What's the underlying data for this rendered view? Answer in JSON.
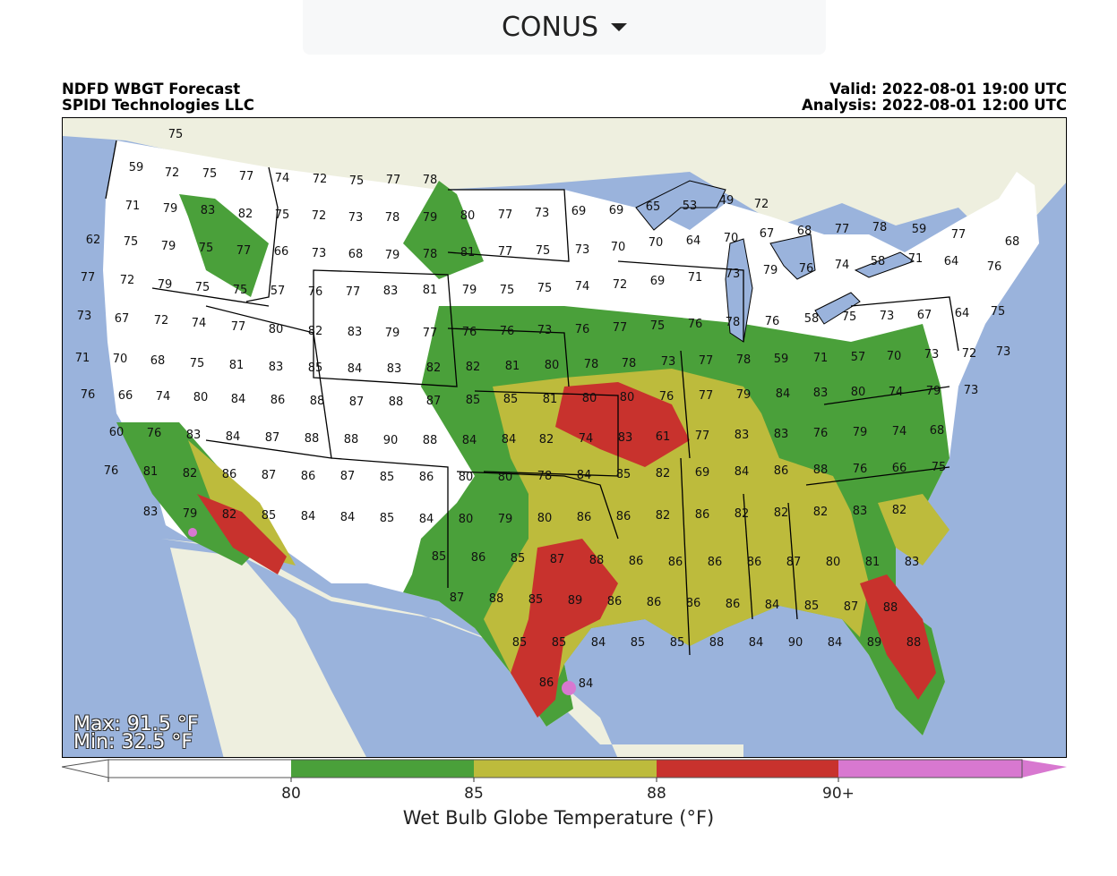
{
  "region_select": {
    "label": "CONUS",
    "icon": "caret-down-icon"
  },
  "header": {
    "line1_left": "NDFD WBGT Forecast",
    "line2_left": "SPIDI Technologies LLC",
    "line1_right": "Valid: 2022-08-01 19:00 UTC",
    "line2_right": "Analysis: 2022-08-01 12:00 UTC"
  },
  "stats": {
    "max": "Max: 91.5 °F",
    "min": "Min: 32.5 °F"
  },
  "colorbar": {
    "title": "Wet Bulb Globe Temperature (°F)",
    "bins": [
      {
        "color": "#ffffff",
        "tick": ""
      },
      {
        "color": "#4aa03a",
        "tick": "80"
      },
      {
        "color": "#bdbb3c",
        "tick": "85"
      },
      {
        "color": "#c8322d",
        "tick": "88"
      },
      {
        "color": "#d878d0",
        "tick": "90+"
      }
    ]
  },
  "colors": {
    "ocean": "#9ab3dc",
    "land_outside": "#eeefdf",
    "cold": "#ffffff",
    "band80": "#4aa03a",
    "band85": "#bdbb3c",
    "band88": "#c8322d",
    "band90": "#d878d0"
  },
  "map_values": [
    "75",
    "59",
    "72",
    "75",
    "77",
    "74",
    "72",
    "75",
    "77",
    "78",
    "71",
    "79",
    "83",
    "82",
    "75",
    "72",
    "73",
    "78",
    "79",
    "80",
    "77",
    "73",
    "69",
    "69",
    "65",
    "53",
    "49",
    "72",
    "62",
    "75",
    "79",
    "75",
    "77",
    "66",
    "73",
    "68",
    "79",
    "78",
    "81",
    "77",
    "75",
    "73",
    "70",
    "70",
    "64",
    "70",
    "67",
    "68",
    "77",
    "78",
    "59",
    "77",
    "77",
    "72",
    "79",
    "75",
    "75",
    "57",
    "76",
    "77",
    "83",
    "81",
    "79",
    "75",
    "75",
    "74",
    "72",
    "69",
    "71",
    "73",
    "79",
    "76",
    "74",
    "58",
    "71",
    "64",
    "76",
    "68",
    "73",
    "67",
    "72",
    "74",
    "77",
    "80",
    "82",
    "83",
    "79",
    "77",
    "76",
    "76",
    "73",
    "76",
    "77",
    "75",
    "76",
    "78",
    "76",
    "58",
    "75",
    "73",
    "67",
    "64",
    "75",
    "71",
    "70",
    "68",
    "75",
    "81",
    "83",
    "85",
    "84",
    "83",
    "82",
    "82",
    "81",
    "80",
    "78",
    "78",
    "73",
    "77",
    "78",
    "59",
    "71",
    "57",
    "70",
    "73",
    "72",
    "73",
    "76",
    "66",
    "74",
    "80",
    "84",
    "86",
    "88",
    "87",
    "88",
    "87",
    "85",
    "85",
    "81",
    "80",
    "80",
    "76",
    "77",
    "79",
    "84",
    "83",
    "80",
    "74",
    "79",
    "73",
    "60",
    "76",
    "83",
    "84",
    "87",
    "88",
    "88",
    "90",
    "88",
    "84",
    "84",
    "82",
    "74",
    "83",
    "61",
    "77",
    "83",
    "83",
    "76",
    "79",
    "74",
    "68",
    "76",
    "81",
    "82",
    "86",
    "87",
    "86",
    "87",
    "85",
    "86",
    "80",
    "80",
    "78",
    "84",
    "85",
    "82",
    "69",
    "84",
    "86",
    "88",
    "76",
    "66",
    "75",
    "83",
    "79",
    "82",
    "85",
    "84",
    "84",
    "85",
    "84",
    "80",
    "79",
    "80",
    "86",
    "86",
    "82",
    "86",
    "82",
    "82",
    "82",
    "83",
    "82",
    "85",
    "86",
    "85",
    "87",
    "88",
    "86",
    "86",
    "86",
    "86",
    "87",
    "80",
    "81",
    "83",
    "87",
    "88",
    "85",
    "89",
    "86",
    "86",
    "86",
    "86",
    "84",
    "85",
    "87",
    "88",
    "85",
    "85",
    "84",
    "85",
    "85",
    "88",
    "84",
    "90",
    "84",
    "89",
    "88",
    "86",
    "84"
  ]
}
